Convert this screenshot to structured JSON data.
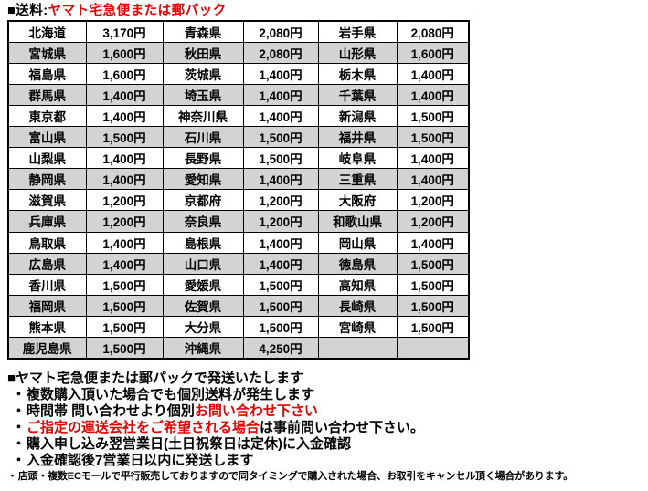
{
  "title": {
    "prefix": "■送料:",
    "highlight": "ヤマト宅急便または郵パック"
  },
  "colors": {
    "accent_red": "#e60000",
    "row_alt_gray": "#d3d3d3",
    "border": "#000000",
    "background": "#ffffff"
  },
  "table": {
    "columns": [
      "prefecture",
      "price",
      "prefecture",
      "price",
      "prefecture",
      "price"
    ],
    "rows": [
      [
        "北海道",
        "3,170円",
        "青森県",
        "2,080円",
        "岩手県",
        "2,080円"
      ],
      [
        "宮城県",
        "1,600円",
        "秋田県",
        "2,080円",
        "山形県",
        "1,600円"
      ],
      [
        "福島県",
        "1,600円",
        "茨城県",
        "1,400円",
        "栃木県",
        "1,400円"
      ],
      [
        "群馬県",
        "1,400円",
        "埼玉県",
        "1,400円",
        "千葉県",
        "1,400円"
      ],
      [
        "東京都",
        "1,400円",
        "神奈川県",
        "1,400円",
        "新潟県",
        "1,500円"
      ],
      [
        "富山県",
        "1,500円",
        "石川県",
        "1,500円",
        "福井県",
        "1,500円"
      ],
      [
        "山梨県",
        "1,400円",
        "長野県",
        "1,500円",
        "岐阜県",
        "1,400円"
      ],
      [
        "静岡県",
        "1,400円",
        "愛知県",
        "1,400円",
        "三重県",
        "1,400円"
      ],
      [
        "滋賀県",
        "1,200円",
        "京都府",
        "1,200円",
        "大阪府",
        "1,200円"
      ],
      [
        "兵庫県",
        "1,200円",
        "奈良県",
        "1,200円",
        "和歌山県",
        "1,200円"
      ],
      [
        "鳥取県",
        "1,400円",
        "島根県",
        "1,400円",
        "岡山県",
        "1,400円"
      ],
      [
        "広島県",
        "1,400円",
        "山口県",
        "1,400円",
        "徳島県",
        "1,500円"
      ],
      [
        "香川県",
        "1,500円",
        "愛媛県",
        "1,500円",
        "高知県",
        "1,500円"
      ],
      [
        "福岡県",
        "1,500円",
        "佐賀県",
        "1,500円",
        "長崎県",
        "1,500円"
      ],
      [
        "熊本県",
        "1,500円",
        "大分県",
        "1,500円",
        "宮崎県",
        "1,500円"
      ],
      [
        "鹿児島県",
        "1,500円",
        "沖縄県",
        "4,250円",
        "",
        ""
      ]
    ]
  },
  "notes": {
    "heading": "■ヤマト宅急便または郵パックで発送いたします",
    "lines": [
      {
        "bullet": "・",
        "small": false,
        "segments": [
          {
            "text": "複数購入頂いた場合でも個別送料が発生します",
            "color": "black"
          }
        ]
      },
      {
        "bullet": "・",
        "small": false,
        "segments": [
          {
            "text": "時間帯 問い合わせより個別",
            "color": "black"
          },
          {
            "text": "お問い合わせ下さい",
            "color": "red"
          }
        ]
      },
      {
        "bullet": "・",
        "small": false,
        "segments": [
          {
            "text": "ご指定の運送会社をご希望される場合",
            "color": "red"
          },
          {
            "text": "は事前問い合わせ下さい。",
            "color": "black"
          }
        ]
      },
      {
        "bullet": "・",
        "small": false,
        "segments": [
          {
            "text": "購入申し込み翌営業日(土日祝祭日は定休)に入金確認",
            "color": "black"
          }
        ]
      },
      {
        "bullet": "・",
        "small": false,
        "segments": [
          {
            "text": "入金確認後7営業日以内に発送します",
            "color": "black"
          }
        ]
      },
      {
        "bullet": "・",
        "small": true,
        "segments": [
          {
            "text": "店頭・複数ECモールで平行販売しておりますので同タイミングで購入された場合、お取引をキャンセル頂く場合があります。",
            "color": "black"
          }
        ]
      }
    ]
  }
}
